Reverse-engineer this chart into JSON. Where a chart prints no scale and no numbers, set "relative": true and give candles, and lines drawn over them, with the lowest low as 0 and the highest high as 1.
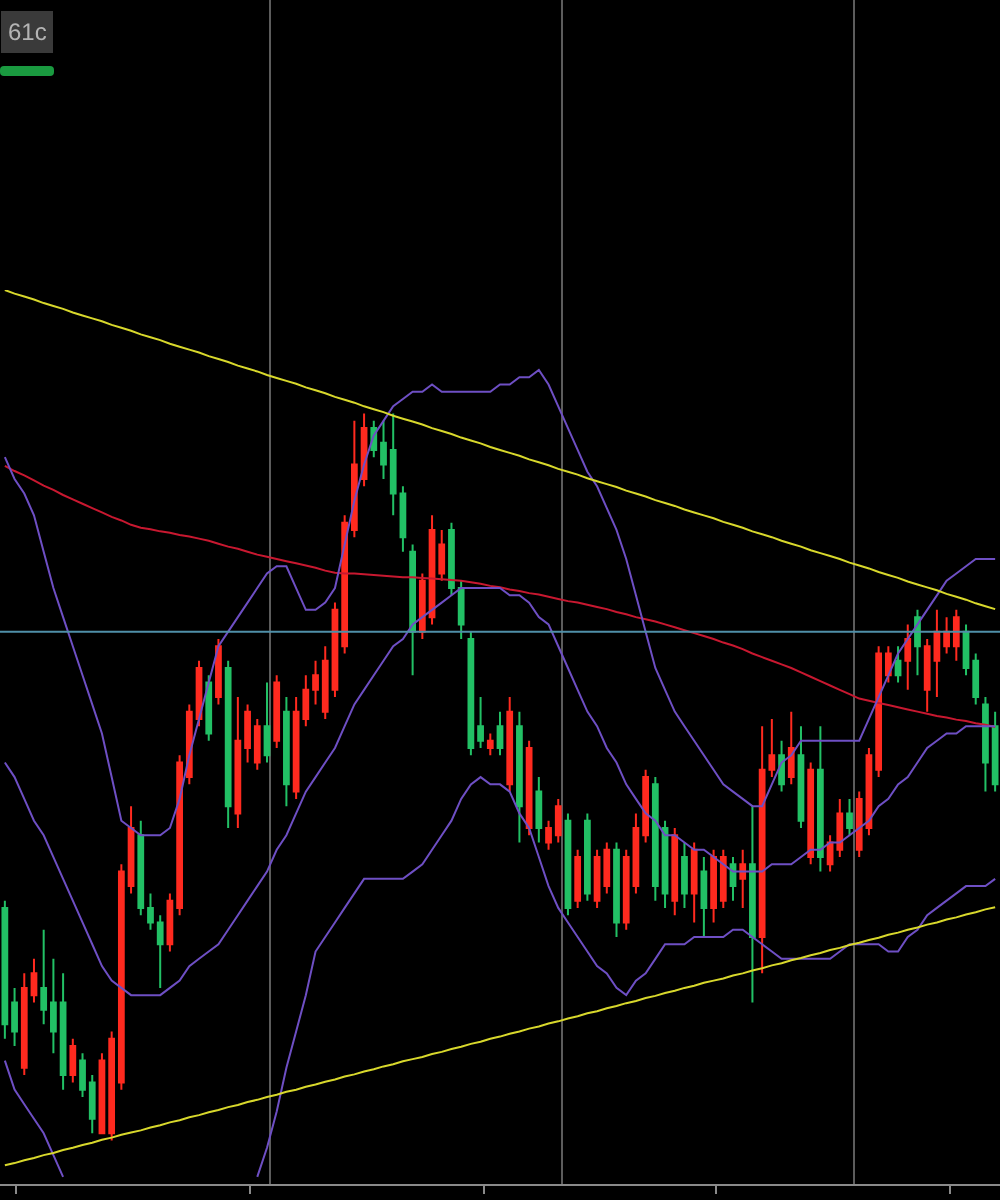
{
  "chart_data": {
    "type": "candlestick",
    "relative": true,
    "categories": [
      null,
      null,
      null,
      null,
      null,
      null,
      null,
      null,
      null,
      null,
      null,
      null,
      null,
      null,
      null,
      null,
      null,
      null,
      null,
      null,
      null,
      null,
      null,
      null,
      null,
      null,
      null,
      null,
      null,
      null,
      null,
      null,
      null,
      null,
      null,
      null,
      null,
      null,
      null,
      null,
      null,
      null,
      null,
      null,
      null,
      null,
      null,
      null,
      null,
      null,
      null,
      null,
      null,
      null,
      null,
      null,
      null,
      null,
      null,
      null,
      null,
      null,
      null,
      null,
      null,
      null,
      null,
      null,
      null,
      null,
      null,
      null,
      null,
      null,
      null,
      null,
      null,
      null,
      null,
      null,
      null,
      null,
      null,
      null,
      null,
      null,
      null,
      null,
      null,
      null,
      null,
      null,
      null,
      null,
      null,
      null,
      null,
      null,
      null,
      null,
      null,
      null,
      null
    ],
    "ohlc": [
      [
        0.32,
        0.33,
        0.14,
        0.16
      ],
      [
        0.19,
        0.21,
        0.13,
        0.15
      ],
      [
        0.1,
        0.23,
        0.09,
        0.21
      ],
      [
        0.2,
        0.25,
        0.19,
        0.23
      ],
      [
        0.21,
        0.29,
        0.16,
        0.18
      ],
      [
        0.19,
        0.25,
        0.12,
        0.15
      ],
      [
        0.19,
        0.23,
        0.07,
        0.09
      ],
      [
        0.09,
        0.14,
        0.08,
        0.13
      ],
      [
        0.11,
        0.12,
        0.06,
        0.07
      ],
      [
        0.08,
        0.09,
        0.01,
        0.03
      ],
      [
        0.01,
        0.12,
        0.01,
        0.11
      ],
      [
        0.01,
        0.15,
        0,
        0.14
      ],
      [
        0.08,
        0.38,
        0.07,
        0.37
      ],
      [
        0.35,
        0.46,
        0.34,
        0.43
      ],
      [
        0.42,
        0.44,
        0.31,
        0.32
      ],
      [
        0.32,
        0.34,
        0.29,
        0.3
      ],
      [
        0.3,
        0.31,
        0.21,
        0.27
      ],
      [
        0.27,
        0.34,
        0.26,
        0.33
      ],
      [
        0.32,
        0.53,
        0.31,
        0.52
      ],
      [
        0.5,
        0.6,
        0.49,
        0.59
      ],
      [
        0.58,
        0.66,
        0.57,
        0.65
      ],
      [
        0.63,
        0.64,
        0.55,
        0.56
      ],
      [
        0.61,
        0.69,
        0.6,
        0.68
      ],
      [
        0.65,
        0.66,
        0.43,
        0.46
      ],
      [
        0.45,
        0.61,
        0.43,
        0.55
      ],
      [
        0.54,
        0.6,
        0.52,
        0.59
      ],
      [
        0.52,
        0.58,
        0.51,
        0.57
      ],
      [
        0.57,
        0.63,
        0.52,
        0.53
      ],
      [
        0.55,
        0.64,
        0.54,
        0.63
      ],
      [
        0.59,
        0.61,
        0.46,
        0.49
      ],
      [
        0.48,
        0.61,
        0.47,
        0.59
      ],
      [
        0.58,
        0.64,
        0.57,
        0.62
      ],
      [
        0.62,
        0.66,
        0.6,
        0.64
      ],
      [
        0.59,
        0.68,
        0.58,
        0.66
      ],
      [
        0.62,
        0.74,
        0.61,
        0.73
      ],
      [
        0.68,
        0.86,
        0.67,
        0.85
      ],
      [
        0.84,
        0.99,
        0.83,
        0.93
      ],
      [
        0.91,
        1.0,
        0.9,
        0.98
      ],
      [
        0.98,
        0.99,
        0.94,
        0.95
      ],
      [
        0.96,
        0.99,
        0.91,
        0.93
      ],
      [
        0.95,
        1.0,
        0.86,
        0.89
      ],
      [
        0.89,
        0.9,
        0.81,
        0.83
      ],
      [
        0.81,
        0.82,
        0.64,
        0.7
      ],
      [
        0.7,
        0.78,
        0.69,
        0.77
      ],
      [
        0.72,
        0.86,
        0.71,
        0.84
      ],
      [
        0.78,
        0.84,
        0.77,
        0.82
      ],
      [
        0.84,
        0.85,
        0.75,
        0.76
      ],
      [
        0.76,
        0.77,
        0.69,
        0.71
      ],
      [
        0.69,
        0.7,
        0.53,
        0.54
      ],
      [
        0.57,
        0.61,
        0.54,
        0.55
      ],
      [
        0.54,
        0.56,
        0.53,
        0.55
      ],
      [
        0.57,
        0.59,
        0.53,
        0.54
      ],
      [
        0.49,
        0.61,
        0.48,
        0.59
      ],
      [
        0.57,
        0.59,
        0.41,
        0.46
      ],
      [
        0.43,
        0.55,
        0.42,
        0.54
      ],
      [
        0.48,
        0.5,
        0.41,
        0.43
      ],
      [
        0.41,
        0.44,
        0.4,
        0.43
      ],
      [
        0.42,
        0.47,
        0.41,
        0.46
      ],
      [
        0.44,
        0.45,
        0.31,
        0.32
      ],
      [
        0.33,
        0.4,
        0.32,
        0.39
      ],
      [
        0.44,
        0.45,
        0.33,
        0.34
      ],
      [
        0.33,
        0.4,
        0.32,
        0.39
      ],
      [
        0.35,
        0.41,
        0.34,
        0.4
      ],
      [
        0.4,
        0.41,
        0.28,
        0.3
      ],
      [
        0.3,
        0.4,
        0.29,
        0.39
      ],
      [
        0.35,
        0.45,
        0.34,
        0.43
      ],
      [
        0.42,
        0.51,
        0.41,
        0.5
      ],
      [
        0.49,
        0.5,
        0.33,
        0.35
      ],
      [
        0.43,
        0.44,
        0.32,
        0.34
      ],
      [
        0.33,
        0.43,
        0.31,
        0.42
      ],
      [
        0.39,
        0.41,
        0.32,
        0.34
      ],
      [
        0.34,
        0.41,
        0.3,
        0.4
      ],
      [
        0.37,
        0.39,
        0.28,
        0.32
      ],
      [
        0.32,
        0.4,
        0.3,
        0.39
      ],
      [
        0.33,
        0.4,
        0.32,
        0.39
      ],
      [
        0.38,
        0.39,
        0.33,
        0.35
      ],
      [
        0.36,
        0.4,
        0.32,
        0.38
      ],
      [
        0.38,
        0.46,
        0.19,
        0.28
      ],
      [
        0.28,
        0.57,
        0.23,
        0.51
      ],
      [
        0.51,
        0.58,
        0.5,
        0.53
      ],
      [
        0.53,
        0.55,
        0.48,
        0.49
      ],
      [
        0.5,
        0.59,
        0.49,
        0.54
      ],
      [
        0.53,
        0.57,
        0.43,
        0.44
      ],
      [
        0.39,
        0.52,
        0.38,
        0.51
      ],
      [
        0.51,
        0.57,
        0.37,
        0.39
      ],
      [
        0.38,
        0.42,
        0.37,
        0.41
      ],
      [
        0.4,
        0.47,
        0.39,
        0.45
      ],
      [
        0.45,
        0.47,
        0.42,
        0.43
      ],
      [
        0.4,
        0.48,
        0.39,
        0.47
      ],
      [
        0.43,
        0.54,
        0.42,
        0.53
      ],
      [
        0.51,
        0.68,
        0.5,
        0.67
      ],
      [
        0.64,
        0.68,
        0.63,
        0.67
      ],
      [
        0.66,
        0.68,
        0.63,
        0.64
      ],
      [
        0.66,
        0.71,
        0.62,
        0.69
      ],
      [
        0.72,
        0.73,
        0.64,
        0.68
      ],
      [
        0.62,
        0.69,
        0.59,
        0.68
      ],
      [
        0.66,
        0.73,
        0.61,
        0.7
      ],
      [
        0.68,
        0.72,
        0.67,
        0.7
      ],
      [
        0.68,
        0.73,
        0.66,
        0.72
      ],
      [
        0.7,
        0.71,
        0.64,
        0.65
      ],
      [
        0.66,
        0.67,
        0.6,
        0.61
      ],
      [
        0.6,
        0.61,
        0.48,
        0.52
      ],
      [
        0.57,
        0.59,
        0.48,
        0.49
      ]
    ],
    "colors": [
      "#22c065",
      "#22c065",
      "#ff2a1f",
      "#ff2a1f",
      "#22c065",
      "#22c065",
      "#22c065",
      "#ff2a1f",
      "#22c065",
      "#22c065",
      "#ff2a1f",
      "#ff2a1f",
      "#ff2a1f",
      "#ff2a1f",
      "#22c065",
      "#22c065",
      "#22c065",
      "#ff2a1f",
      "#ff2a1f",
      "#ff2a1f",
      "#ff2a1f",
      "#22c065",
      "#ff2a1f",
      "#22c065",
      "#ff2a1f",
      "#ff2a1f",
      "#ff2a1f",
      "#22c065",
      "#ff2a1f",
      "#22c065",
      "#ff2a1f",
      "#ff2a1f",
      "#ff2a1f",
      "#ff2a1f",
      "#ff2a1f",
      "#ff2a1f",
      "#ff2a1f",
      "#ff2a1f",
      "#22c065",
      "#22c065",
      "#22c065",
      "#22c065",
      "#22c065",
      "#ff2a1f",
      "#ff2a1f",
      "#ff2a1f",
      "#22c065",
      "#22c065",
      "#22c065",
      "#22c065",
      "#ff2a1f",
      "#22c065",
      "#ff2a1f",
      "#22c065",
      "#ff2a1f",
      "#22c065",
      "#ff2a1f",
      "#ff2a1f",
      "#22c065",
      "#ff2a1f",
      "#22c065",
      "#ff2a1f",
      "#ff2a1f",
      "#22c065",
      "#ff2a1f",
      "#ff2a1f",
      "#ff2a1f",
      "#22c065",
      "#22c065",
      "#ff2a1f",
      "#22c065",
      "#ff2a1f",
      "#22c065",
      "#ff2a1f",
      "#ff2a1f",
      "#22c065",
      "#ff2a1f",
      "#22c065",
      "#ff2a1f",
      "#ff2a1f",
      "#22c065",
      "#ff2a1f",
      "#22c065",
      "#ff2a1f",
      "#22c065",
      "#ff2a1f",
      "#ff2a1f",
      "#22c065",
      "#ff2a1f",
      "#ff2a1f",
      "#ff2a1f",
      "#ff2a1f",
      "#22c065",
      "#ff2a1f",
      "#22c065",
      "#ff2a1f",
      "#ff2a1f",
      "#ff2a1f",
      "#ff2a1f",
      "#22c065",
      "#22c065",
      "#22c065",
      "#22c065"
    ],
    "series": [
      {
        "type": "line",
        "color": "#c81830",
        "values": [
          0.928,
          0.921,
          0.915,
          0.908,
          0.901,
          0.895,
          0.888,
          0.882,
          0.876,
          0.87,
          0.864,
          0.858,
          0.853,
          0.847,
          0.843,
          0.841,
          0.838,
          0.836,
          0.833,
          0.831,
          0.828,
          0.825,
          0.821,
          0.817,
          0.814,
          0.81,
          0.806,
          0.803,
          0.8,
          0.797,
          0.794,
          0.791,
          0.788,
          0.784,
          0.781,
          0.78,
          0.78,
          0.779,
          0.778,
          0.777,
          0.776,
          0.775,
          0.775,
          0.774,
          0.773,
          0.772,
          0.771,
          0.77,
          0.768,
          0.766,
          0.763,
          0.761,
          0.758,
          0.756,
          0.753,
          0.751,
          0.748,
          0.745,
          0.742,
          0.74,
          0.737,
          0.734,
          0.731,
          0.727,
          0.724,
          0.72,
          0.717,
          0.714,
          0.71,
          0.706,
          0.702,
          0.698,
          0.694,
          0.69,
          0.685,
          0.681,
          0.676,
          0.67,
          0.665,
          0.66,
          0.655,
          0.65,
          0.644,
          0.638,
          0.632,
          0.626,
          0.62,
          0.614,
          0.608,
          0.605,
          0.602,
          0.599,
          0.596,
          0.593,
          0.59,
          0.587,
          0.584,
          0.582,
          0.579,
          0.577,
          0.574,
          0.572,
          0.569
        ]
      },
      {
        "type": "line",
        "color": "#6e4fc4",
        "values": [
          0.94,
          0.91,
          0.89,
          0.86,
          0.81,
          0.76,
          0.72,
          0.68,
          0.64,
          0.6,
          0.56,
          0.5,
          0.44,
          0.43,
          0.42,
          0.42,
          0.42,
          0.43,
          0.47,
          0.53,
          0.58,
          0.63,
          0.68,
          0.7,
          0.72,
          0.74,
          0.76,
          0.78,
          0.79,
          0.79,
          0.76,
          0.73,
          0.73,
          0.74,
          0.76,
          0.82,
          0.88,
          0.93,
          0.97,
          0.99,
          1.01,
          1.02,
          1.03,
          1.03,
          1.04,
          1.03,
          1.03,
          1.03,
          1.03,
          1.03,
          1.03,
          1.04,
          1.04,
          1.05,
          1.05,
          1.06,
          1.04,
          1.01,
          0.98,
          0.95,
          0.92,
          0.9,
          0.87,
          0.84,
          0.8,
          0.75,
          0.7,
          0.65,
          0.62,
          0.59,
          0.57,
          0.55,
          0.53,
          0.51,
          0.49,
          0.48,
          0.47,
          0.46,
          0.46,
          0.49,
          0.52,
          0.53,
          0.55,
          0.55,
          0.55,
          0.55,
          0.55,
          0.55,
          0.55,
          0.58,
          0.61,
          0.64,
          0.67,
          0.69,
          0.71,
          0.73,
          0.75,
          0.77,
          0.78,
          0.79,
          0.8,
          0.8,
          0.8
        ]
      },
      {
        "type": "line",
        "color": "#6e4fc4",
        "values": [
          0.52,
          0.5,
          0.47,
          0.44,
          0.42,
          0.39,
          0.36,
          0.33,
          0.3,
          0.27,
          0.24,
          0.22,
          0.21,
          0.2,
          0.2,
          0.2,
          0.2,
          0.21,
          0.22,
          0.24,
          0.25,
          0.26,
          0.27,
          0.29,
          0.31,
          0.33,
          0.35,
          0.37,
          0.4,
          0.42,
          0.45,
          0.48,
          0.5,
          0.52,
          0.54,
          0.57,
          0.6,
          0.62,
          0.64,
          0.66,
          0.68,
          0.69,
          0.71,
          0.72,
          0.73,
          0.74,
          0.75,
          0.76,
          0.76,
          0.76,
          0.76,
          0.76,
          0.75,
          0.75,
          0.74,
          0.72,
          0.71,
          0.68,
          0.65,
          0.62,
          0.59,
          0.57,
          0.54,
          0.52,
          0.49,
          0.47,
          0.45,
          0.44,
          0.42,
          0.42,
          0.41,
          0.4,
          0.4,
          0.39,
          0.38,
          0.37,
          0.37,
          0.37,
          0.37,
          0.38,
          0.38,
          0.38,
          0.39,
          0.4,
          0.4,
          0.41,
          0.41,
          0.42,
          0.43,
          0.44,
          0.46,
          0.47,
          0.49,
          0.5,
          0.52,
          0.54,
          0.55,
          0.56,
          0.56,
          0.57,
          0.57,
          0.57,
          0.57
        ]
      },
      {
        "type": "line",
        "color": "#6e4fc4",
        "values": [
          0.11,
          0.07,
          0.05,
          0.03,
          0.01,
          -0.02,
          -0.05,
          null,
          null,
          null,
          null,
          null,
          null,
          null,
          null,
          null,
          null,
          null,
          null,
          null,
          null,
          null,
          null,
          null,
          null,
          null,
          -0.05,
          -0.01,
          0.04,
          0.1,
          0.15,
          0.2,
          0.26,
          0.28,
          0.3,
          0.32,
          0.34,
          0.36,
          0.36,
          0.36,
          0.36,
          0.36,
          0.37,
          0.38,
          0.4,
          0.42,
          0.44,
          0.47,
          0.49,
          0.5,
          0.49,
          0.49,
          0.48,
          0.45,
          0.43,
          0.39,
          0.35,
          0.32,
          0.3,
          0.28,
          0.26,
          0.24,
          0.23,
          0.21,
          0.2,
          0.22,
          0.23,
          0.25,
          0.27,
          0.27,
          0.27,
          0.28,
          0.28,
          0.28,
          0.28,
          0.29,
          0.29,
          0.28,
          0.27,
          0.26,
          0.25,
          0.25,
          0.25,
          0.25,
          0.25,
          0.25,
          0.26,
          0.27,
          0.27,
          0.27,
          0.27,
          0.26,
          0.26,
          0.28,
          0.29,
          0.31,
          0.32,
          0.33,
          0.34,
          0.35,
          0.35,
          0.35,
          0.36
        ]
      },
      {
        "type": "line",
        "color": "#d8d82c",
        "values": [
          1.17,
          1.165,
          1.161,
          1.157,
          1.152,
          1.148,
          1.144,
          1.139,
          1.135,
          1.131,
          1.127,
          1.122,
          1.118,
          1.114,
          1.109,
          1.105,
          1.101,
          1.096,
          1.092,
          1.088,
          1.084,
          1.079,
          1.075,
          1.071,
          1.066,
          1.062,
          1.058,
          1.053,
          1.049,
          1.045,
          1.041,
          1.036,
          1.032,
          1.028,
          1.023,
          1.019,
          1.015,
          1.01,
          1.006,
          1.002,
          0.997,
          0.993,
          0.989,
          0.985,
          0.98,
          0.976,
          0.972,
          0.967,
          0.963,
          0.959,
          0.954,
          0.95,
          0.946,
          0.942,
          0.937,
          0.933,
          0.929,
          0.924,
          0.92,
          0.916,
          0.911,
          0.907,
          0.903,
          0.899,
          0.894,
          0.89,
          0.886,
          0.881,
          0.877,
          0.873,
          0.868,
          0.864,
          0.86,
          0.856,
          0.851,
          0.847,
          0.843,
          0.838,
          0.834,
          0.83,
          0.825,
          0.821,
          0.817,
          0.812,
          0.808,
          0.804,
          0.8,
          0.795,
          0.791,
          0.787,
          0.782,
          0.778,
          0.774,
          0.769,
          0.765,
          0.761,
          0.757,
          0.752,
          0.748,
          0.744,
          0.739,
          0.735,
          0.731
        ]
      },
      {
        "type": "line",
        "color": "#d8d82c",
        "values": [
          -0.034,
          -0.031,
          -0.027,
          -0.024,
          -0.02,
          -0.017,
          -0.013,
          -0.01,
          -0.006,
          -0.003,
          0.001,
          0.004,
          0.008,
          0.011,
          0.014,
          0.018,
          0.021,
          0.025,
          0.028,
          0.032,
          0.035,
          0.039,
          0.042,
          0.046,
          0.049,
          0.053,
          0.056,
          0.06,
          0.063,
          0.067,
          0.07,
          0.074,
          0.077,
          0.081,
          0.084,
          0.088,
          0.091,
          0.095,
          0.098,
          0.102,
          0.105,
          0.109,
          0.112,
          0.115,
          0.119,
          0.122,
          0.126,
          0.129,
          0.133,
          0.136,
          0.14,
          0.143,
          0.147,
          0.15,
          0.154,
          0.157,
          0.161,
          0.164,
          0.168,
          0.171,
          0.175,
          0.178,
          0.182,
          0.185,
          0.189,
          0.192,
          0.196,
          0.199,
          0.203,
          0.206,
          0.21,
          0.213,
          0.217,
          0.22,
          0.223,
          0.227,
          0.23,
          0.234,
          0.237,
          0.241,
          0.244,
          0.248,
          0.251,
          0.255,
          0.258,
          0.262,
          0.265,
          0.269,
          0.272,
          0.276,
          0.279,
          0.283,
          0.286,
          0.29,
          0.293,
          0.297,
          0.3,
          0.304,
          0.307,
          0.311,
          0.314,
          0.318,
          0.321
        ]
      }
    ],
    "ref_lines": [
      {
        "axis": "y",
        "value": 0.7,
        "color": "#4f8fa8"
      }
    ],
    "annotations": [
      "61c"
    ]
  }
}
